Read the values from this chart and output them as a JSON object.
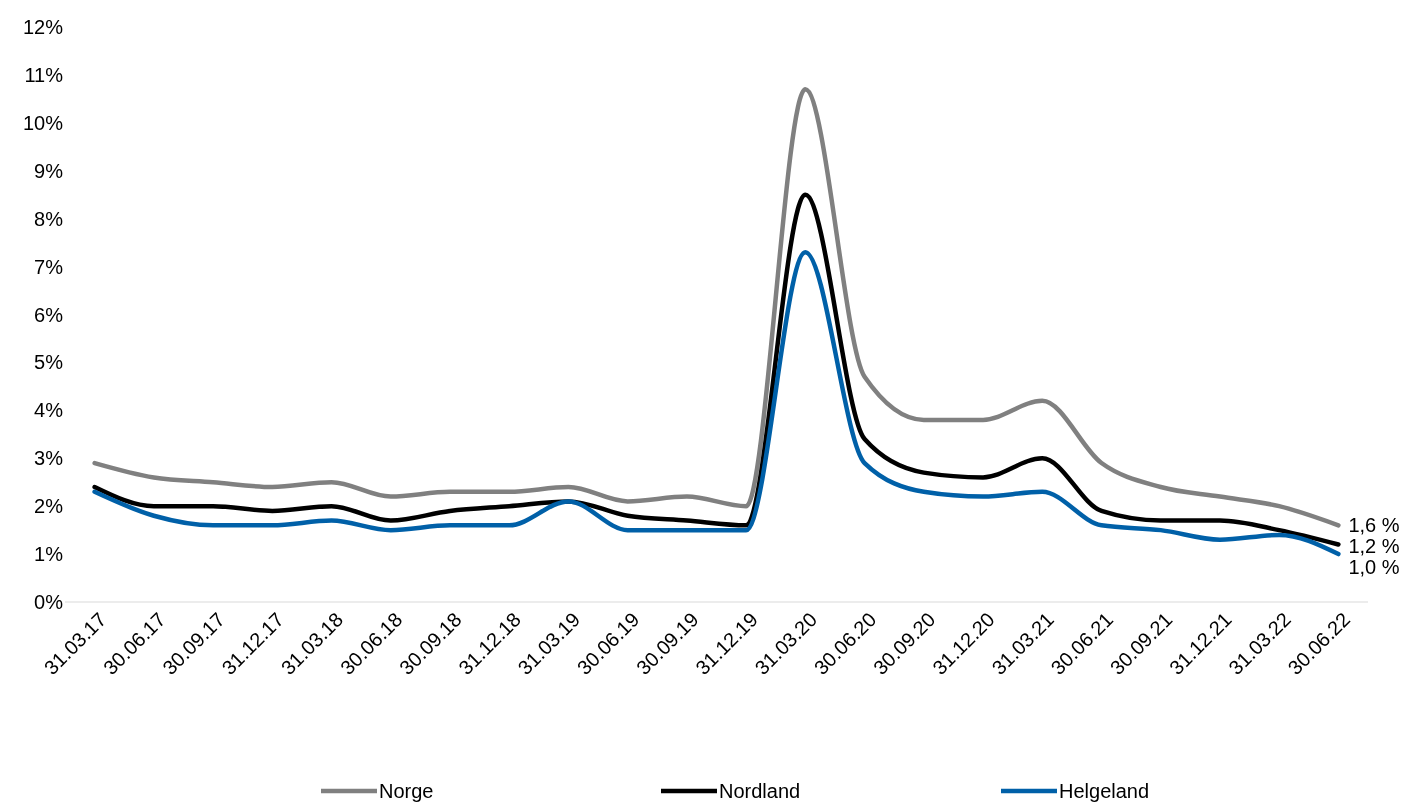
{
  "chart_data": {
    "type": "line",
    "categories": [
      "31.03.17",
      "30.06.17",
      "30.09.17",
      "31.12.17",
      "31.03.18",
      "30.06.18",
      "30.09.18",
      "31.12.18",
      "31.03.19",
      "30.06.19",
      "30.09.19",
      "31.12.19",
      "31.03.20",
      "30.06.20",
      "30.09.20",
      "31.12.20",
      "31.03.21",
      "30.06.21",
      "30.09.21",
      "31.12.21",
      "31.03.22",
      "30.06.22"
    ],
    "series": [
      {
        "name": "Norge",
        "color": "#808080",
        "values": [
          2.9,
          2.6,
          2.5,
          2.4,
          2.5,
          2.2,
          2.3,
          2.3,
          2.4,
          2.1,
          2.2,
          2.0,
          10.7,
          4.7,
          3.8,
          3.8,
          4.2,
          2.9,
          2.4,
          2.2,
          2.0,
          1.6
        ],
        "value_labels": [
          null,
          null,
          null,
          null,
          null,
          null,
          null,
          null,
          null,
          null,
          null,
          null,
          null,
          null,
          null,
          null,
          null,
          null,
          null,
          null,
          null,
          "1,6 %"
        ]
      },
      {
        "name": "Nordland",
        "color": "#000000",
        "values": [
          2.4,
          2.0,
          2.0,
          1.9,
          2.0,
          1.7,
          1.9,
          2.0,
          2.1,
          1.8,
          1.7,
          1.6,
          8.5,
          3.4,
          2.7,
          2.6,
          3.0,
          1.9,
          1.7,
          1.7,
          1.5,
          1.2
        ],
        "value_labels": [
          null,
          null,
          null,
          null,
          null,
          null,
          null,
          null,
          null,
          null,
          null,
          null,
          null,
          null,
          null,
          null,
          null,
          null,
          null,
          null,
          null,
          "1,2 %"
        ]
      },
      {
        "name": "Helgeland",
        "color": "#0060a8",
        "values": [
          2.3,
          1.8,
          1.6,
          1.6,
          1.7,
          1.5,
          1.6,
          1.6,
          2.1,
          1.5,
          1.5,
          1.5,
          7.3,
          2.9,
          2.3,
          2.2,
          2.3,
          1.6,
          1.5,
          1.3,
          1.4,
          1.0
        ],
        "value_labels": [
          null,
          null,
          null,
          null,
          null,
          null,
          null,
          null,
          null,
          null,
          null,
          null,
          null,
          null,
          null,
          null,
          null,
          null,
          null,
          null,
          null,
          "1,0 %"
        ]
      }
    ],
    "ylim": [
      0,
      12
    ],
    "yticks": [
      {
        "value": 0,
        "label": "0%"
      },
      {
        "value": 1,
        "label": "1%"
      },
      {
        "value": 2,
        "label": "2%"
      },
      {
        "value": 3,
        "label": "3%"
      },
      {
        "value": 4,
        "label": "4%"
      },
      {
        "value": 5,
        "label": "5%"
      },
      {
        "value": 6,
        "label": "6%"
      },
      {
        "value": 7,
        "label": "7%"
      },
      {
        "value": 8,
        "label": "8%"
      },
      {
        "value": 9,
        "label": "9%"
      },
      {
        "value": 10,
        "label": "10%"
      },
      {
        "value": 11,
        "label": "11%"
      },
      {
        "value": 12,
        "label": "12%"
      }
    ],
    "grid": false,
    "legend": "bottom",
    "marker": "none",
    "line_style": "solid"
  }
}
